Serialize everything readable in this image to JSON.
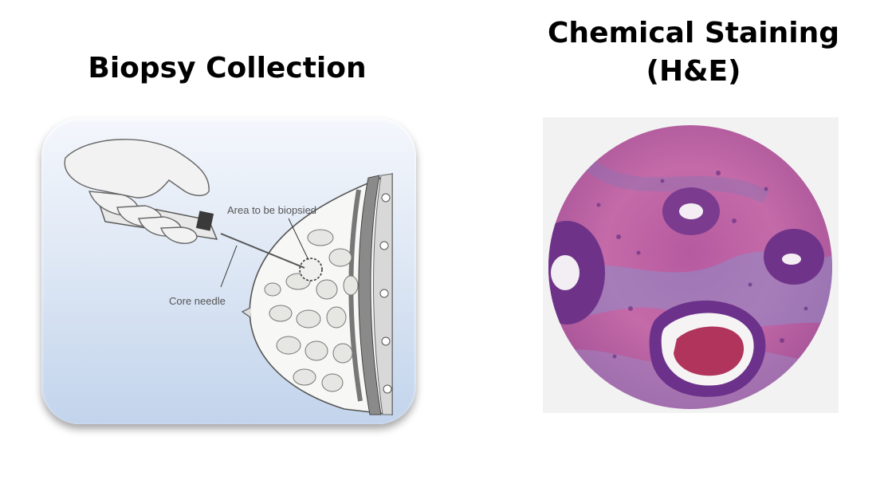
{
  "left": {
    "title": "Biopsy Collection",
    "labels": {
      "area": "Area to be biopsied",
      "needle": "Core needle"
    }
  },
  "right": {
    "title_line1": "Chemical Staining",
    "title_line2": "(H&E)"
  },
  "colors": {
    "panel_top": "#f4f7fc",
    "panel_bottom": "#c2d4ec",
    "stain_pink": "#c8609f",
    "stain_purple": "#7a3a8e",
    "stain_blue": "#8f8cc4"
  }
}
